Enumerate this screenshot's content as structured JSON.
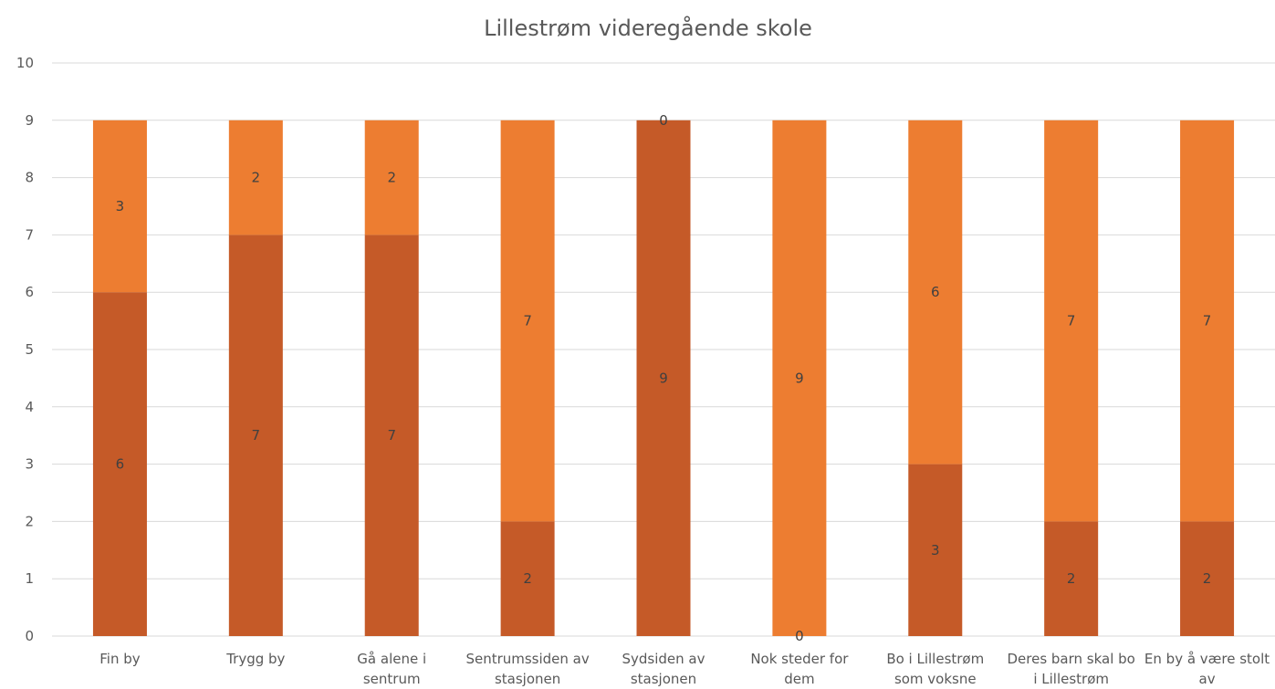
{
  "chart_data": {
    "type": "bar",
    "stacked": true,
    "title": "Lillestrøm videregående skole",
    "xlabel": "",
    "ylabel": "",
    "ylim": [
      0,
      10
    ],
    "yticks": [
      "0",
      "1",
      "2",
      "3",
      "4",
      "5",
      "6",
      "7",
      "8",
      "9",
      "10"
    ],
    "grid": true,
    "legend": "none",
    "categories": [
      [
        "Fin by"
      ],
      [
        "Trygg by"
      ],
      [
        "Gå alene i",
        "sentrum"
      ],
      [
        "Sentrumssiden av",
        "stasjonen"
      ],
      [
        "Sydsiden av",
        "stasjonen"
      ],
      [
        "Nok steder for",
        "dem"
      ],
      [
        "Bo i Lillestrøm",
        "som voksne"
      ],
      [
        "Deres barn skal bo",
        "i Lillestrøm"
      ],
      [
        "En by å være stolt",
        "av"
      ]
    ],
    "series": [
      {
        "color": "#c55a28",
        "values": [
          6,
          7,
          7,
          2,
          9,
          0,
          3,
          2,
          2
        ],
        "labels": [
          "6",
          "7",
          "7",
          "2",
          "9",
          "0",
          "3",
          "2",
          "2"
        ]
      },
      {
        "color": "#ed7d31",
        "values": [
          3,
          2,
          2,
          7,
          0,
          9,
          6,
          7,
          7
        ],
        "labels": [
          "3",
          "2",
          "2",
          "7",
          "0",
          "9",
          "6",
          "7",
          "7"
        ]
      }
    ]
  }
}
